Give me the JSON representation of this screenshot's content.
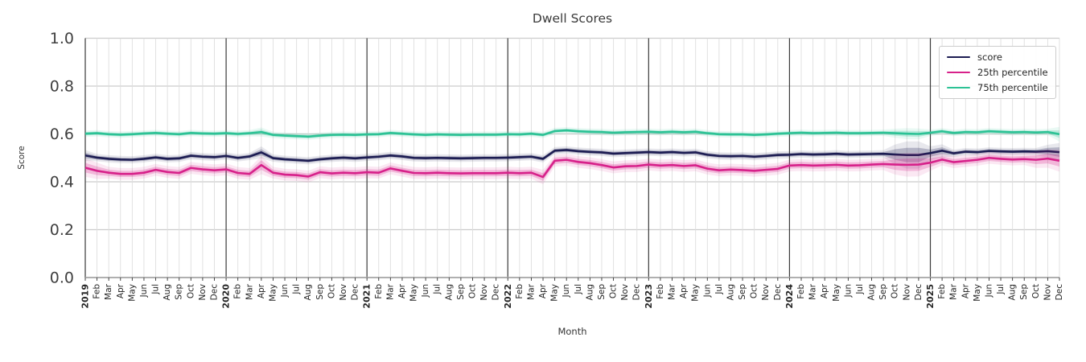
{
  "chart_data": {
    "type": "line",
    "title": "Dwell Scores",
    "xlabel": "Month",
    "ylabel": "Score",
    "ylim": [
      0.0,
      1.0
    ],
    "yticks": [
      0.0,
      0.2,
      0.4,
      0.6,
      0.8,
      1.0
    ],
    "grid": true,
    "legend_position": "upper right",
    "x_start": "2019-01",
    "x_end": "2025-12",
    "x_years": [
      "2019",
      "2020",
      "2021",
      "2022",
      "2023",
      "2024",
      "2025"
    ],
    "x_months": [
      "Feb",
      "Mar",
      "Apr",
      "May",
      "Jun",
      "Jul",
      "Aug",
      "Sep",
      "Oct",
      "Nov",
      "Dec"
    ],
    "series": [
      {
        "name": "score",
        "color": "#1c1c52",
        "values": [
          0.51,
          0.501,
          0.496,
          0.493,
          0.492,
          0.496,
          0.502,
          0.496,
          0.498,
          0.509,
          0.505,
          0.503,
          0.508,
          0.5,
          0.506,
          0.523,
          0.499,
          0.494,
          0.491,
          0.488,
          0.494,
          0.498,
          0.501,
          0.498,
          0.502,
          0.505,
          0.51,
          0.506,
          0.5,
          0.499,
          0.5,
          0.499,
          0.498,
          0.499,
          0.5,
          0.5,
          0.501,
          0.503,
          0.505,
          0.496,
          0.53,
          0.533,
          0.528,
          0.525,
          0.523,
          0.518,
          0.52,
          0.522,
          0.524,
          0.522,
          0.524,
          0.521,
          0.523,
          0.513,
          0.508,
          0.507,
          0.508,
          0.505,
          0.508,
          0.512,
          0.513,
          0.516,
          0.514,
          0.515,
          0.517,
          0.514,
          0.515,
          0.516,
          0.517,
          0.514,
          0.512,
          0.512,
          0.52,
          0.53,
          0.519,
          0.526,
          0.524,
          0.529,
          0.527,
          0.526,
          0.527,
          0.526,
          0.528,
          0.524
        ],
        "band": {
          "default": 0.008,
          "overrides": {
            "0": 0.012,
            "15": 0.013,
            "69": 0.022,
            "70": 0.03,
            "71": 0.03,
            "72": 0.015,
            "73": 0.014,
            "82": 0.014,
            "83": 0.02
          }
        }
      },
      {
        "name": "25th percentile",
        "color": "#d7218a",
        "values": [
          0.459,
          0.446,
          0.438,
          0.433,
          0.433,
          0.438,
          0.45,
          0.441,
          0.437,
          0.458,
          0.452,
          0.448,
          0.452,
          0.437,
          0.433,
          0.47,
          0.438,
          0.43,
          0.428,
          0.422,
          0.44,
          0.435,
          0.438,
          0.436,
          0.44,
          0.438,
          0.456,
          0.446,
          0.437,
          0.436,
          0.438,
          0.436,
          0.435,
          0.436,
          0.436,
          0.436,
          0.438,
          0.436,
          0.438,
          0.42,
          0.488,
          0.492,
          0.483,
          0.478,
          0.47,
          0.46,
          0.465,
          0.466,
          0.472,
          0.468,
          0.47,
          0.466,
          0.469,
          0.455,
          0.448,
          0.451,
          0.449,
          0.446,
          0.45,
          0.454,
          0.468,
          0.47,
          0.468,
          0.469,
          0.471,
          0.468,
          0.469,
          0.472,
          0.474,
          0.472,
          0.471,
          0.472,
          0.48,
          0.493,
          0.482,
          0.487,
          0.492,
          0.5,
          0.496,
          0.493,
          0.495,
          0.492,
          0.497,
          0.488
        ],
        "band": {
          "default": 0.013,
          "overrides": {
            "0": 0.02,
            "1": 0.018,
            "15": 0.02,
            "39": 0.016,
            "69": 0.022,
            "70": 0.026,
            "71": 0.026,
            "72": 0.018,
            "81": 0.018,
            "82": 0.02,
            "83": 0.024
          }
        }
      },
      {
        "name": "75th percentile",
        "color": "#2cc295",
        "values": [
          0.601,
          0.603,
          0.599,
          0.597,
          0.599,
          0.602,
          0.604,
          0.601,
          0.599,
          0.604,
          0.602,
          0.601,
          0.603,
          0.6,
          0.603,
          0.608,
          0.596,
          0.593,
          0.591,
          0.589,
          0.593,
          0.596,
          0.597,
          0.596,
          0.598,
          0.599,
          0.604,
          0.601,
          0.598,
          0.596,
          0.598,
          0.597,
          0.596,
          0.597,
          0.597,
          0.597,
          0.599,
          0.598,
          0.601,
          0.596,
          0.612,
          0.615,
          0.611,
          0.609,
          0.608,
          0.605,
          0.607,
          0.608,
          0.609,
          0.607,
          0.609,
          0.607,
          0.609,
          0.603,
          0.599,
          0.598,
          0.598,
          0.596,
          0.598,
          0.601,
          0.603,
          0.605,
          0.603,
          0.604,
          0.605,
          0.603,
          0.603,
          0.604,
          0.605,
          0.603,
          0.601,
          0.6,
          0.605,
          0.611,
          0.604,
          0.608,
          0.607,
          0.611,
          0.609,
          0.607,
          0.608,
          0.606,
          0.608,
          0.599
        ],
        "band": {
          "default": 0.007,
          "overrides": {
            "15": 0.01,
            "69": 0.01,
            "70": 0.012,
            "71": 0.012,
            "83": 0.016
          }
        }
      }
    ],
    "colors": {
      "grid": "#dedede",
      "grid_major_h": "#cccccc",
      "year_line": "#3a3a3a",
      "axis": "#b0b0b0",
      "tick_text": "#262626",
      "ytick_text": "#404040"
    }
  }
}
